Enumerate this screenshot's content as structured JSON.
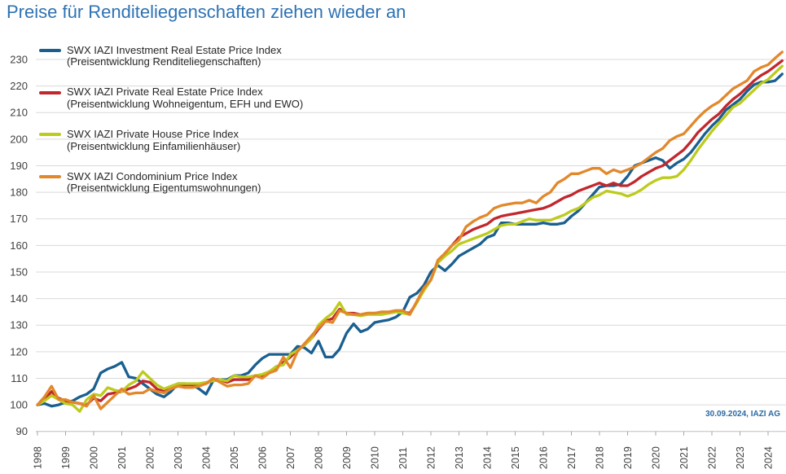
{
  "chart_data": {
    "type": "line",
    "title": "Preise für Renditeliegenschaften ziehen wieder an",
    "ylim": [
      90,
      230
    ],
    "yticks": [
      90,
      100,
      110,
      120,
      130,
      140,
      150,
      160,
      170,
      180,
      190,
      200,
      210,
      220,
      230
    ],
    "xticks": [
      "1998",
      "1999",
      "2000",
      "2001",
      "2002",
      "2003",
      "2004",
      "2005",
      "2006",
      "2007",
      "2008",
      "2009",
      "2010",
      "2011",
      "2012",
      "2013",
      "2014",
      "2015",
      "2016",
      "2017",
      "2018",
      "2019",
      "2020",
      "2021",
      "2022",
      "2023",
      "2024"
    ],
    "grid": "horizontal",
    "legend_position": "top-left",
    "note": "30.09.2024, IAZI AG",
    "x": [
      1998,
      1998.25,
      1998.5,
      1998.75,
      1999,
      1999.25,
      1999.5,
      1999.75,
      2000,
      2000.25,
      2000.5,
      2000.75,
      2001,
      2001.25,
      2001.5,
      2001.75,
      2002,
      2002.25,
      2002.5,
      2002.75,
      2003,
      2003.25,
      2003.5,
      2003.75,
      2004,
      2004.25,
      2004.5,
      2004.75,
      2005,
      2005.25,
      2005.5,
      2005.75,
      2006,
      2006.25,
      2006.5,
      2006.75,
      2007,
      2007.25,
      2007.5,
      2007.75,
      2008,
      2008.25,
      2008.5,
      2008.75,
      2009,
      2009.25,
      2009.5,
      2009.75,
      2010,
      2010.25,
      2010.5,
      2010.75,
      2011,
      2011.25,
      2011.5,
      2011.75,
      2012,
      2012.25,
      2012.5,
      2012.75,
      2013,
      2013.25,
      2013.5,
      2013.75,
      2014,
      2014.25,
      2014.5,
      2014.75,
      2015,
      2015.25,
      2015.5,
      2015.75,
      2016,
      2016.25,
      2016.5,
      2016.75,
      2017,
      2017.25,
      2017.5,
      2017.75,
      2018,
      2018.25,
      2018.5,
      2018.75,
      2019,
      2019.25,
      2019.5,
      2019.75,
      2020,
      2020.25,
      2020.5,
      2020.75,
      2021,
      2021.25,
      2021.5,
      2021.75,
      2022,
      2022.25,
      2022.5,
      2022.75,
      2023,
      2023.25,
      2023.5,
      2023.75,
      2024,
      2024.25,
      2024.5
    ],
    "series": [
      {
        "name": "SWX IAZI Investment Real Estate Price Index",
        "description": "(Preisentwicklung Renditeliegenschaften)",
        "color": "#1a5f8f",
        "values": [
          100,
          100.5,
          99.5,
          100,
          101,
          101.5,
          103,
          104,
          106,
          112,
          113.5,
          114.5,
          116,
          110.5,
          110,
          108,
          106,
          104,
          103,
          105,
          108,
          108,
          107.5,
          106,
          104,
          109,
          109.5,
          109.5,
          111,
          111,
          112,
          115,
          117.5,
          119,
          119,
          119,
          119,
          122,
          121.5,
          119.5,
          124,
          118,
          118,
          121,
          127,
          130.5,
          127.5,
          128.5,
          131,
          131.5,
          132,
          133,
          135,
          140.5,
          142,
          145,
          150,
          152.5,
          150.5,
          153,
          156,
          157.5,
          159,
          160.5,
          163,
          164,
          168.5,
          168.5,
          168,
          168,
          168,
          168,
          168.5,
          168,
          168,
          168.5,
          171,
          173,
          176,
          179,
          182,
          182.5,
          182.5,
          183,
          186,
          190,
          191,
          192,
          193,
          192,
          189,
          191,
          192.5,
          195,
          198.5,
          202,
          205,
          207.5,
          211,
          213,
          215,
          218,
          220.5,
          221.5,
          221.5,
          222,
          224.5
        ]
      },
      {
        "name": "SWX IAZI Private Real Estate Price Index",
        "description": "(Preisentwicklung Wohneigentum, EFH und EWO)",
        "color": "#c1272d",
        "values": [
          100,
          102,
          105,
          102.5,
          101.5,
          101,
          100.5,
          100,
          102.5,
          101.5,
          104,
          104.5,
          105,
          106,
          107,
          109,
          108.5,
          106,
          105,
          106,
          107,
          107.5,
          107.5,
          107.5,
          108,
          109.5,
          109.5,
          108.5,
          109.5,
          109.5,
          109.5,
          111,
          111,
          112.5,
          114,
          116,
          118,
          120.5,
          122.5,
          125,
          128.5,
          131.5,
          132.5,
          136,
          134.5,
          134.5,
          134,
          134.5,
          134.5,
          134.5,
          134.5,
          135,
          135,
          134.5,
          138.5,
          143.5,
          147,
          154,
          157,
          160,
          163,
          164.5,
          166,
          167,
          168,
          170,
          171,
          171.5,
          172,
          172.5,
          173,
          173.5,
          174,
          175,
          176.5,
          178,
          179,
          180.5,
          181.5,
          182.5,
          183.5,
          182.5,
          183.5,
          182.5,
          182.5,
          184,
          186,
          187.5,
          189,
          190,
          192,
          194,
          196,
          199,
          202.5,
          205,
          207.5,
          209.5,
          212.5,
          215,
          217,
          219.5,
          222,
          224,
          225.5,
          227.5,
          229.5
        ]
      },
      {
        "name": "SWX IAZI Private House Price Index",
        "description": "(Preisentwicklung Einfamilienhäuser)",
        "color": "#bccb1c",
        "values": [
          100,
          101.5,
          103.5,
          102,
          100.5,
          100,
          97.5,
          102,
          104,
          103.5,
          106.5,
          105.5,
          105,
          107.5,
          109,
          112.5,
          110,
          107.5,
          106,
          107,
          108,
          108,
          108,
          108,
          108.5,
          109,
          109.5,
          109,
          111,
          110.5,
          110.5,
          111,
          111.5,
          112.5,
          114.5,
          115,
          119,
          120.5,
          122.5,
          125,
          130,
          132.5,
          134.5,
          138.5,
          134,
          134,
          133.5,
          134,
          134,
          134,
          134.5,
          135,
          134.5,
          134,
          138.5,
          143,
          147,
          153.5,
          156,
          158,
          160.5,
          161.5,
          162.5,
          163.5,
          164.5,
          166,
          167.5,
          168,
          168,
          169,
          170,
          169.5,
          169.5,
          169.5,
          170.5,
          171.5,
          173,
          174,
          176,
          178,
          179,
          180.5,
          180,
          179.5,
          178.5,
          179.5,
          181,
          183,
          184.5,
          185.5,
          185.5,
          186,
          188.5,
          192,
          196,
          199.5,
          203,
          206,
          209,
          212,
          213.5,
          216,
          218.5,
          221,
          222.5,
          225,
          227.5
        ]
      },
      {
        "name": "SWX IAZI Condominium Price Index",
        "description": "(Preisentwicklung Eigentumswohnungen)",
        "color": "#e2882b",
        "values": [
          100,
          103,
          107,
          102,
          102,
          101,
          100.5,
          99.5,
          103.5,
          98.5,
          101,
          103.5,
          106,
          104,
          104.5,
          104.5,
          106,
          105,
          104.5,
          106,
          107,
          106.5,
          106.5,
          107,
          108,
          110,
          108.5,
          107,
          107.5,
          107.5,
          108,
          111,
          110,
          112,
          113,
          118,
          114,
          120,
          123,
          126,
          129,
          131.5,
          131,
          135.5,
          134.5,
          134,
          134,
          134.5,
          134.5,
          135,
          135,
          135.5,
          135.5,
          134,
          139,
          144,
          147,
          154.5,
          157,
          160,
          162,
          167,
          169,
          170.5,
          171.5,
          174,
          175,
          175.5,
          176,
          176,
          177,
          176,
          178.5,
          180,
          183.5,
          185,
          187,
          187,
          188,
          189,
          189,
          187,
          188.5,
          187.5,
          188.5,
          189.5,
          191,
          193,
          195,
          196.5,
          199.5,
          201,
          202,
          205,
          208,
          210.5,
          212.5,
          214,
          216.5,
          219,
          220.5,
          222,
          225.5,
          227,
          228,
          230.5,
          232.8
        ]
      }
    ]
  }
}
